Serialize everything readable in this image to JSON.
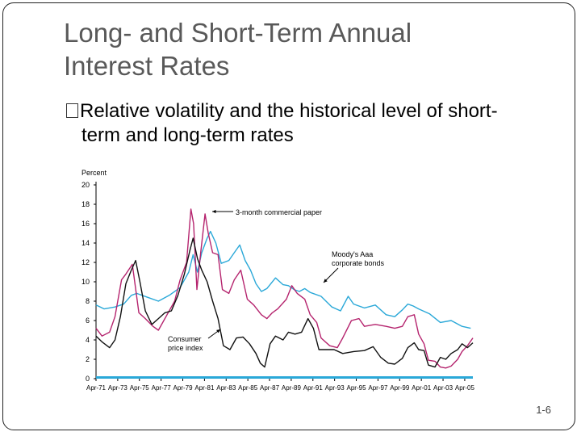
{
  "slide": {
    "title_line1": "Long- and Short-Term Annual",
    "title_line2": "Interest Rates",
    "bullet_line1": "Relative volatility and the historical level of short-",
    "bullet_line2": "term and long-term rates",
    "page_number": "1-6"
  },
  "chart_data": {
    "type": "line",
    "ylabel": "Percent",
    "ylim": [
      0,
      20
    ],
    "yticks": [
      0,
      2,
      4,
      6,
      8,
      10,
      12,
      14,
      16,
      18,
      20
    ],
    "xlim": [
      1971.25,
      2006.0
    ],
    "xticks": [
      {
        "value": 1971.25,
        "label": "Apr-71"
      },
      {
        "value": 1973.25,
        "label": "Apr-73"
      },
      {
        "value": 1975.25,
        "label": "Apr-75"
      },
      {
        "value": 1977.25,
        "label": "Apr-77"
      },
      {
        "value": 1979.25,
        "label": "Apr-79"
      },
      {
        "value": 1981.25,
        "label": "Apr-81"
      },
      {
        "value": 1983.25,
        "label": "Apr-83"
      },
      {
        "value": 1985.25,
        "label": "Apr-85"
      },
      {
        "value": 1987.25,
        "label": "Apr-87"
      },
      {
        "value": 1989.25,
        "label": "Apr-89"
      },
      {
        "value": 1991.25,
        "label": "Apr-91"
      },
      {
        "value": 1993.25,
        "label": "Apr-93"
      },
      {
        "value": 1995.25,
        "label": "Apr-95"
      },
      {
        "value": 1997.25,
        "label": "Apr-97"
      },
      {
        "value": 1999.25,
        "label": "Apr-99"
      },
      {
        "value": 2001.25,
        "label": "Apr-01"
      },
      {
        "value": 2003.25,
        "label": "Apr-03"
      },
      {
        "value": 2005.25,
        "label": "Apr-05"
      }
    ],
    "series": [
      {
        "name": "Moody's Aaa corporate bonds",
        "color": "#2aa8d8",
        "x": [
          1971.25,
          1972.0,
          1973.0,
          1973.8,
          1974.5,
          1975.0,
          1976.0,
          1977.0,
          1978.0,
          1979.0,
          1979.8,
          1980.2,
          1980.6,
          1981.0,
          1981.5,
          1981.8,
          1982.3,
          1982.8,
          1983.5,
          1984.0,
          1984.5,
          1985.0,
          1985.5,
          1986.0,
          1986.5,
          1987.0,
          1987.8,
          1988.5,
          1989.0,
          1989.5,
          1990.0,
          1990.5,
          1991.0,
          1992.0,
          1993.0,
          1993.8,
          1994.5,
          1995.0,
          1996.0,
          1997.0,
          1998.0,
          1998.8,
          1999.5,
          2000.0,
          2000.5,
          2001.0,
          2002.0,
          2003.0,
          2004.0,
          2005.0,
          2005.8
        ],
        "values": [
          7.6,
          7.2,
          7.4,
          7.7,
          8.6,
          8.8,
          8.4,
          8.0,
          8.6,
          9.4,
          11.0,
          12.8,
          11.0,
          13.0,
          14.5,
          15.2,
          14.0,
          11.9,
          12.2,
          13.0,
          13.8,
          12.2,
          11.2,
          9.8,
          9.0,
          9.3,
          10.4,
          9.7,
          9.6,
          9.2,
          9.0,
          9.3,
          8.9,
          8.5,
          7.4,
          7.0,
          8.5,
          7.7,
          7.3,
          7.6,
          6.6,
          6.4,
          7.1,
          7.7,
          7.5,
          7.2,
          6.7,
          5.8,
          6.0,
          5.4,
          5.2
        ]
      },
      {
        "name": "3-month commercial paper",
        "color": "#b5246e",
        "x": [
          1971.25,
          1971.8,
          1972.5,
          1973.0,
          1973.6,
          1974.0,
          1974.6,
          1975.2,
          1975.8,
          1976.5,
          1977.0,
          1977.8,
          1978.5,
          1979.0,
          1979.6,
          1980.0,
          1980.25,
          1980.55,
          1980.9,
          1981.3,
          1981.6,
          1982.0,
          1982.5,
          1982.9,
          1983.5,
          1984.0,
          1984.6,
          1985.2,
          1985.8,
          1986.5,
          1987.0,
          1987.5,
          1988.0,
          1988.8,
          1989.3,
          1989.8,
          1990.5,
          1991.0,
          1991.6,
          1992.0,
          1992.8,
          1993.5,
          1994.0,
          1994.8,
          1995.5,
          1996.0,
          1997.0,
          1998.0,
          1998.8,
          1999.5,
          2000.0,
          2000.6,
          2001.0,
          2001.5,
          2001.9,
          2002.5,
          2003.0,
          2003.5,
          2004.0,
          2004.6,
          2005.0,
          2005.5,
          2006.0
        ],
        "values": [
          5.2,
          4.4,
          4.8,
          6.4,
          10.2,
          10.8,
          11.8,
          6.8,
          6.2,
          5.4,
          5.0,
          6.6,
          8.0,
          10.2,
          12.0,
          17.5,
          16.0,
          9.2,
          13.0,
          17.0,
          15.0,
          13.0,
          12.8,
          9.2,
          8.8,
          10.2,
          11.2,
          8.2,
          7.6,
          6.6,
          6.2,
          6.8,
          7.2,
          8.2,
          9.6,
          8.8,
          8.2,
          6.6,
          5.8,
          4.2,
          3.4,
          3.2,
          4.2,
          6.0,
          6.2,
          5.4,
          5.6,
          5.4,
          5.2,
          5.4,
          6.4,
          6.6,
          4.6,
          3.6,
          1.9,
          1.8,
          1.2,
          1.1,
          1.3,
          2.0,
          2.8,
          3.4,
          4.2
        ]
      },
      {
        "name": "Consumer price index",
        "color": "#111111",
        "x": [
          1971.25,
          1971.8,
          1972.5,
          1973.0,
          1973.5,
          1974.0,
          1974.5,
          1974.9,
          1975.3,
          1975.8,
          1976.4,
          1977.0,
          1977.6,
          1978.2,
          1978.8,
          1979.4,
          1979.9,
          1980.2,
          1980.6,
          1981.0,
          1981.5,
          1982.0,
          1982.5,
          1983.0,
          1983.6,
          1984.2,
          1984.8,
          1985.4,
          1986.0,
          1986.4,
          1986.8,
          1987.3,
          1987.8,
          1988.5,
          1989.0,
          1989.6,
          1990.2,
          1990.8,
          1991.3,
          1991.8,
          1992.5,
          1993.2,
          1994.0,
          1995.0,
          1996.0,
          1996.8,
          1997.5,
          1998.2,
          1998.8,
          1999.5,
          2000.0,
          2000.6,
          2001.0,
          2001.5,
          2001.9,
          2002.5,
          2003.0,
          2003.5,
          2004.0,
          2004.6,
          2005.0,
          2005.5,
          2006.0
        ],
        "values": [
          4.4,
          3.8,
          3.2,
          4.0,
          6.4,
          9.8,
          11.2,
          12.2,
          10.0,
          7.0,
          5.6,
          6.2,
          6.8,
          7.0,
          8.6,
          10.8,
          13.2,
          14.5,
          12.4,
          11.2,
          10.0,
          8.0,
          6.2,
          3.4,
          3.0,
          4.2,
          4.3,
          3.6,
          2.6,
          1.6,
          1.2,
          3.6,
          4.4,
          4.0,
          4.8,
          4.6,
          4.8,
          6.2,
          5.2,
          3.0,
          3.0,
          3.0,
          2.6,
          2.8,
          2.9,
          3.3,
          2.2,
          1.6,
          1.5,
          2.1,
          3.2,
          3.7,
          3.0,
          2.9,
          1.4,
          1.2,
          2.2,
          2.0,
          2.6,
          3.0,
          3.6,
          3.2,
          3.7
        ]
      }
    ],
    "annotations": [
      {
        "text": "3-month commercial paper",
        "series": "3-month commercial paper"
      },
      {
        "text": "Moody's Aaa corporate bonds",
        "series": "Moody's Aaa corporate bonds"
      },
      {
        "text": "Consumer price index",
        "series": "Consumer price index"
      }
    ],
    "annotation_lines": {
      "cp": [
        "3-month commercial paper"
      ],
      "aaa": [
        "Moody's Aaa",
        "corporate bonds"
      ],
      "cpi": [
        "Consumer",
        "price index"
      ]
    },
    "grid": false,
    "baseline_color": "#2aa8d8",
    "axis_color": "#000000"
  }
}
